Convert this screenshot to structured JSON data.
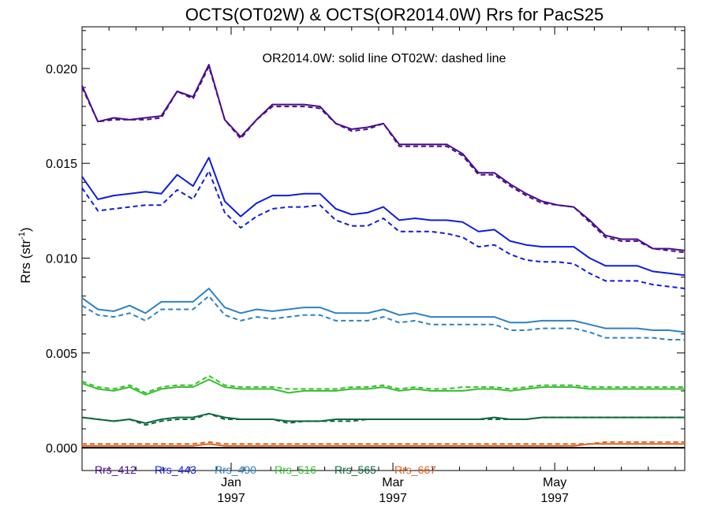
{
  "chart_data": {
    "type": "line",
    "title": "OCTS(OT02W) & OCTS(OR2014.0W)  Rrs for PacS25",
    "annotation": "OR2014.0W: solid line   OT02W: dashed line",
    "ylabel": "Rrs (str",
    "ylabel_sup": "-1",
    "ylabel_close": ")",
    "ylim": [
      -0.0012,
      0.0222
    ],
    "yticks": [
      "0.000",
      "0.005",
      "0.010",
      "0.015",
      "0.020"
    ],
    "ytick_values": [
      0.0,
      0.005,
      0.01,
      0.015,
      0.02
    ],
    "xlim": [
      0,
      38
    ],
    "xticks": [
      {
        "x": 9.4,
        "month": "Jan",
        "year": "1997"
      },
      {
        "x": 19.6,
        "month": "Mar",
        "year": "1997"
      },
      {
        "x": 29.8,
        "month": "May",
        "year": "1997"
      }
    ],
    "x": [
      0,
      1,
      2,
      3,
      4,
      5,
      6,
      7,
      8,
      9,
      10,
      11,
      12,
      13,
      14,
      15,
      16,
      17,
      18,
      19,
      20,
      21,
      22,
      23,
      24,
      25,
      26,
      27,
      28,
      29,
      30,
      31,
      32,
      33,
      34,
      35,
      36,
      37,
      38
    ],
    "series": [
      {
        "name": "Rrs_412",
        "color": "#4b0c8c",
        "solid": [
          0.0191,
          0.0172,
          0.0174,
          0.0173,
          0.0174,
          0.0175,
          0.0188,
          0.0185,
          0.0202,
          0.0173,
          0.0164,
          0.0173,
          0.0181,
          0.0181,
          0.0181,
          0.018,
          0.0171,
          0.0168,
          0.0169,
          0.0171,
          0.016,
          0.016,
          0.016,
          0.016,
          0.0155,
          0.0145,
          0.0145,
          0.0139,
          0.0134,
          0.013,
          0.0128,
          0.0127,
          0.012,
          0.0112,
          0.011,
          0.011,
          0.0105,
          0.0105,
          0.0104
        ],
        "dashed": [
          0.019,
          0.0172,
          0.0173,
          0.0173,
          0.0173,
          0.0174,
          0.0188,
          0.0184,
          0.0201,
          0.0173,
          0.0163,
          0.0173,
          0.018,
          0.018,
          0.018,
          0.0179,
          0.0171,
          0.0167,
          0.0168,
          0.0171,
          0.0159,
          0.0159,
          0.0159,
          0.0159,
          0.0154,
          0.0144,
          0.0144,
          0.0138,
          0.0133,
          0.0129,
          0.0128,
          0.0127,
          0.0119,
          0.0111,
          0.0109,
          0.0109,
          0.0105,
          0.0104,
          0.0103
        ]
      },
      {
        "name": "Rrs_443",
        "color": "#0f1de0",
        "solid": [
          0.0143,
          0.0131,
          0.0133,
          0.0134,
          0.0135,
          0.0134,
          0.0144,
          0.0138,
          0.0153,
          0.013,
          0.0122,
          0.0129,
          0.0133,
          0.0133,
          0.0134,
          0.0134,
          0.0126,
          0.0123,
          0.0124,
          0.0127,
          0.012,
          0.0121,
          0.012,
          0.012,
          0.0119,
          0.0114,
          0.0115,
          0.0109,
          0.0107,
          0.0106,
          0.0106,
          0.0106,
          0.01,
          0.0096,
          0.0096,
          0.0096,
          0.0093,
          0.0092,
          0.0091
        ],
        "dashed": [
          0.0137,
          0.0125,
          0.0126,
          0.0127,
          0.0128,
          0.0128,
          0.0136,
          0.0131,
          0.0146,
          0.0124,
          0.0116,
          0.0122,
          0.0126,
          0.0127,
          0.0127,
          0.0128,
          0.012,
          0.0117,
          0.0117,
          0.0121,
          0.0114,
          0.0114,
          0.0114,
          0.0113,
          0.0111,
          0.0106,
          0.0107,
          0.0102,
          0.0099,
          0.0098,
          0.0098,
          0.0097,
          0.0092,
          0.0088,
          0.0088,
          0.0088,
          0.0086,
          0.0085,
          0.0084
        ]
      },
      {
        "name": "Rrs_490",
        "color": "#2e82c2",
        "solid": [
          0.0079,
          0.0073,
          0.0072,
          0.0075,
          0.0071,
          0.0077,
          0.0077,
          0.0077,
          0.0084,
          0.0074,
          0.0071,
          0.0073,
          0.0072,
          0.0073,
          0.0074,
          0.0074,
          0.0071,
          0.0071,
          0.0071,
          0.0073,
          0.007,
          0.0071,
          0.0069,
          0.0069,
          0.0069,
          0.0069,
          0.0069,
          0.0066,
          0.0066,
          0.0067,
          0.0067,
          0.0067,
          0.0065,
          0.0063,
          0.0063,
          0.0063,
          0.0062,
          0.0062,
          0.0061
        ],
        "dashed": [
          0.0075,
          0.007,
          0.0069,
          0.0071,
          0.0067,
          0.0073,
          0.0073,
          0.0073,
          0.008,
          0.007,
          0.0067,
          0.0069,
          0.0068,
          0.0069,
          0.007,
          0.007,
          0.0067,
          0.0067,
          0.0067,
          0.0069,
          0.0066,
          0.0067,
          0.0065,
          0.0065,
          0.0065,
          0.0065,
          0.0065,
          0.0062,
          0.0062,
          0.0063,
          0.0063,
          0.0063,
          0.0061,
          0.0058,
          0.0058,
          0.0058,
          0.0058,
          0.0057,
          0.0057
        ]
      },
      {
        "name": "Rrs_516",
        "color": "#33c12b",
        "solid": [
          0.0034,
          0.0031,
          0.003,
          0.0032,
          0.0028,
          0.0031,
          0.0032,
          0.0032,
          0.0036,
          0.0032,
          0.0031,
          0.0031,
          0.0031,
          0.0029,
          0.003,
          0.003,
          0.003,
          0.0031,
          0.0031,
          0.0032,
          0.003,
          0.0031,
          0.003,
          0.003,
          0.003,
          0.0031,
          0.0031,
          0.003,
          0.0031,
          0.0032,
          0.0032,
          0.0032,
          0.0031,
          0.0031,
          0.0031,
          0.0031,
          0.0031,
          0.0031,
          0.0031
        ],
        "dashed": [
          0.0035,
          0.0032,
          0.0031,
          0.0033,
          0.0029,
          0.0032,
          0.0033,
          0.0033,
          0.0038,
          0.0033,
          0.0032,
          0.0032,
          0.0032,
          0.0031,
          0.0031,
          0.0031,
          0.0031,
          0.0032,
          0.0032,
          0.0033,
          0.0031,
          0.0032,
          0.0031,
          0.0031,
          0.0032,
          0.0032,
          0.0032,
          0.0031,
          0.0032,
          0.0033,
          0.0033,
          0.0033,
          0.0032,
          0.0032,
          0.0032,
          0.0032,
          0.0032,
          0.0032,
          0.0032
        ]
      },
      {
        "name": "Rrs_565",
        "color": "#0f6a3e",
        "solid": [
          0.0016,
          0.0015,
          0.0014,
          0.0015,
          0.0013,
          0.0015,
          0.0016,
          0.0016,
          0.0018,
          0.0016,
          0.0015,
          0.0015,
          0.0015,
          0.0014,
          0.0014,
          0.0014,
          0.0015,
          0.0015,
          0.0015,
          0.0015,
          0.0015,
          0.0015,
          0.0015,
          0.0015,
          0.0015,
          0.0015,
          0.0016,
          0.0015,
          0.0015,
          0.0016,
          0.0016,
          0.0016,
          0.0016,
          0.0016,
          0.0016,
          0.0016,
          0.0016,
          0.0016,
          0.0016
        ],
        "dashed": [
          0.0016,
          0.0015,
          0.0014,
          0.0015,
          0.0012,
          0.0014,
          0.0015,
          0.0015,
          0.0018,
          0.0015,
          0.0015,
          0.0015,
          0.0015,
          0.0013,
          0.0014,
          0.0014,
          0.0014,
          0.0014,
          0.0015,
          0.0015,
          0.0015,
          0.0015,
          0.0015,
          0.0015,
          0.0015,
          0.0015,
          0.0015,
          0.0015,
          0.0015,
          0.0016,
          0.0016,
          0.0016,
          0.0016,
          0.0016,
          0.0016,
          0.0016,
          0.0016,
          0.0016,
          0.0016
        ]
      },
      {
        "name": "Rrs_667",
        "color": "#e0631e",
        "solid": [
          0.0001,
          0.0001,
          0.0001,
          0.0001,
          0.0001,
          0.0001,
          0.0001,
          0.0001,
          0.0002,
          0.0001,
          0.0001,
          0.0001,
          0.0001,
          0.0001,
          0.0001,
          0.0001,
          0.0001,
          0.0001,
          0.0001,
          0.0001,
          0.0001,
          0.0001,
          0.0001,
          0.0001,
          0.0001,
          0.0001,
          0.0001,
          0.0001,
          0.0001,
          0.0001,
          0.0001,
          0.0001,
          0.0002,
          0.0002,
          0.0002,
          0.0002,
          0.0002,
          0.0002,
          0.0002
        ],
        "dashed": [
          0.0002,
          0.0002,
          0.0002,
          0.0002,
          0.0002,
          0.0002,
          0.0002,
          0.0002,
          0.0003,
          0.0002,
          0.0002,
          0.0002,
          0.0002,
          0.0002,
          0.0002,
          0.0002,
          0.0002,
          0.0002,
          0.0002,
          0.0002,
          0.0002,
          0.0002,
          0.0002,
          0.0002,
          0.0002,
          0.0002,
          0.0002,
          0.0002,
          0.0002,
          0.0002,
          0.0002,
          0.0002,
          0.0002,
          0.0003,
          0.0003,
          0.0003,
          0.0003,
          0.0003,
          0.0003
        ]
      }
    ],
    "zero_line": true,
    "grid": false,
    "legend_position": "bottom-left"
  }
}
